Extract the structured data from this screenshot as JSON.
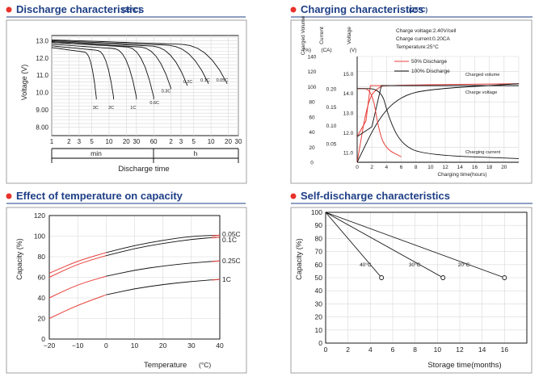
{
  "colors": {
    "accent": "#e8322a",
    "title": "#1e3f86",
    "series_red": "#e8403a",
    "series_black": "#111111"
  },
  "chart_data": [
    {
      "type": "line",
      "title": "Discharge characteristics",
      "title_temp": "(25°C)",
      "ylabel": "Voltage (V)",
      "xlabel": "Discharge time",
      "ylim": [
        7.5,
        13.3
      ],
      "yticks": [
        "13.0",
        "12.0",
        "11.0",
        "10.0",
        "9.00",
        "8.00"
      ],
      "ytick_values": [
        13.0,
        12.0,
        11.0,
        10.0,
        9.0,
        8.0
      ],
      "xticks": [
        "1",
        "2",
        "3",
        "5",
        "10",
        "20",
        "30",
        "60",
        "2",
        "3",
        "5",
        "10",
        "20",
        "30"
      ],
      "xunits": {
        "min": "min",
        "h": "h"
      },
      "series": [
        {
          "name": "3C",
          "end_min": 6,
          "cutoff": 9.6,
          "start": 12.6
        },
        {
          "name": "2C",
          "end_min": 12,
          "cutoff": 9.6,
          "start": 12.7
        },
        {
          "name": "1C",
          "end_min": 30,
          "cutoff": 9.6,
          "start": 12.8
        },
        {
          "name": "0.6C",
          "end_min": 60,
          "cutoff": 9.6,
          "start": 12.9
        },
        {
          "name": "0.3C",
          "end_min": 120,
          "cutoff": 10.2,
          "start": 12.9
        },
        {
          "name": "0.2C",
          "end_min": 230,
          "cutoff": 10.4,
          "start": 12.95
        },
        {
          "name": "0.1C",
          "end_min": 540,
          "cutoff": 10.5,
          "start": 13.0
        },
        {
          "name": "0.05C",
          "end_min": 1140,
          "cutoff": 10.5,
          "start": 13.05
        }
      ]
    },
    {
      "type": "line",
      "title": "Charging characteristics",
      "title_temp": "(25°C)",
      "axis_headers": {
        "charged_volume": "Charged Volume",
        "current": "Current",
        "voltage": "Voltage"
      },
      "axis_units": {
        "charged_volume": "(%)",
        "current": "(CA)",
        "voltage": "(V)"
      },
      "conditions": [
        "Charge voltage:2.40V/cell",
        "Charge current:0.20CA",
        "Temperature:25°C"
      ],
      "legend": [
        "50% Discharge",
        "100% Discharge"
      ],
      "labels": {
        "volume": "Charged volume",
        "voltage": "Charge voltage",
        "current": "Charging current"
      },
      "xlabel": "Charging time(hours)",
      "x_ticks": [
        0,
        2,
        4,
        6,
        8,
        10,
        12,
        14,
        16,
        18,
        20
      ],
      "volume_ticks": [
        0,
        20,
        40,
        60,
        80,
        100,
        120,
        140
      ],
      "current_ticks": [
        "0.20",
        "0.15",
        "0.10",
        "0.05"
      ],
      "voltage_ticks": [
        "15.0",
        "14.0",
        "13.0",
        "12.0",
        "11.0"
      ],
      "volume_50": [
        [
          0,
          0
        ],
        [
          1.5,
          85
        ],
        [
          3,
          100
        ],
        [
          4,
          102
        ],
        [
          22,
          104
        ]
      ],
      "volume_100": [
        [
          0,
          0
        ],
        [
          3,
          60
        ],
        [
          6,
          88
        ],
        [
          10,
          97
        ],
        [
          22,
          104
        ]
      ],
      "voltage_50": [
        [
          0,
          11.8
        ],
        [
          1.2,
          12.6
        ],
        [
          1.8,
          14.4
        ],
        [
          22,
          14.4
        ]
      ],
      "voltage_100": [
        [
          0,
          11.8
        ],
        [
          2,
          12.3
        ],
        [
          3.3,
          14.4
        ],
        [
          22,
          14.4
        ]
      ],
      "current_50": [
        [
          0,
          0.2
        ],
        [
          2,
          0.2
        ],
        [
          3,
          0.08
        ],
        [
          4,
          0.035
        ],
        [
          6,
          0.015
        ]
      ],
      "current_100": [
        [
          0,
          0.2
        ],
        [
          3.3,
          0.2
        ],
        [
          4.3,
          0.12
        ],
        [
          6,
          0.05
        ],
        [
          9,
          0.02
        ],
        [
          22,
          0.01
        ]
      ]
    },
    {
      "type": "line",
      "title": "Effect of temperature on capacity",
      "ylabel": "Capacity (%)",
      "xlabel": "Temperature",
      "xlabel_unit": "(°C)",
      "xlim": [
        -20,
        40
      ],
      "ylim": [
        0,
        120
      ],
      "xticks": [
        "−20",
        "−10",
        "0",
        "10",
        "20",
        "30",
        "40"
      ],
      "yticks": [
        "0",
        "20",
        "40",
        "60",
        "80",
        "100",
        "120"
      ],
      "series": [
        {
          "name": "0.05C",
          "values": [
            [
              -20,
              64
            ],
            [
              -10,
              76
            ],
            [
              0,
              84
            ],
            [
              10,
              91
            ],
            [
              20,
              96
            ],
            [
              30,
              100
            ],
            [
              40,
              101
            ]
          ]
        },
        {
          "name": "0.1C",
          "values": [
            [
              -20,
              60
            ],
            [
              -10,
              73
            ],
            [
              0,
              81
            ],
            [
              10,
              88
            ],
            [
              20,
              93
            ],
            [
              30,
              97
            ],
            [
              40,
              99
            ]
          ]
        },
        {
          "name": "0.25C",
          "values": [
            [
              -20,
              40
            ],
            [
              -10,
              53
            ],
            [
              0,
              61
            ],
            [
              10,
              67
            ],
            [
              20,
              71
            ],
            [
              30,
              74
            ],
            [
              40,
              76
            ]
          ]
        },
        {
          "name": "1C",
          "values": [
            [
              -20,
              20
            ],
            [
              -10,
              33
            ],
            [
              0,
              43
            ],
            [
              10,
              49
            ],
            [
              20,
              53
            ],
            [
              30,
              56
            ],
            [
              40,
              58
            ]
          ]
        }
      ]
    },
    {
      "type": "line",
      "title": "Self-discharge characteristics",
      "ylabel": "Capacity (%)",
      "xlabel": "Storage time(months)",
      "xlim": [
        0,
        18
      ],
      "ylim": [
        0,
        100
      ],
      "xticks": [
        "0",
        "2",
        "4",
        "6",
        "8",
        "10",
        "12",
        "14",
        "16"
      ],
      "yticks": [
        "0",
        "10",
        "20",
        "30",
        "40",
        "50",
        "60",
        "70",
        "80",
        "90",
        "100"
      ],
      "series": [
        {
          "name": "40°C",
          "values": [
            [
              0,
              100
            ],
            [
              5,
              50
            ]
          ]
        },
        {
          "name": "30°C",
          "values": [
            [
              0,
              100
            ],
            [
              10.5,
              50
            ]
          ]
        },
        {
          "name": "20°C",
          "values": [
            [
              0,
              100
            ],
            [
              16,
              50
            ]
          ]
        }
      ]
    }
  ]
}
